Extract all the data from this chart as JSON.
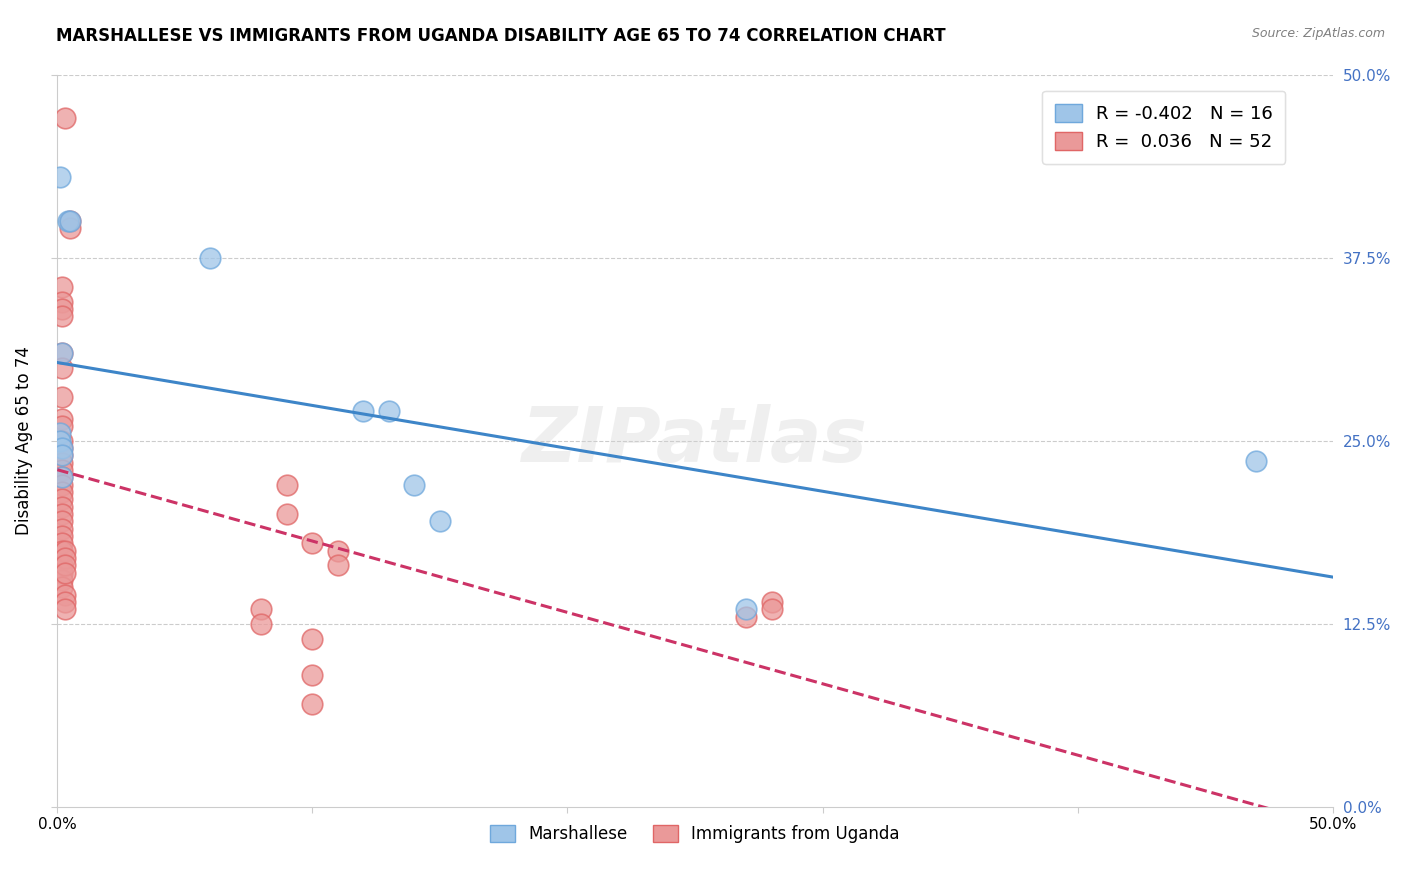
{
  "title": "MARSHALLESE VS IMMIGRANTS FROM UGANDA DISABILITY AGE 65 TO 74 CORRELATION CHART",
  "source": "Source: ZipAtlas.com",
  "ylabel": "Disability Age 65 to 74",
  "xlim": [
    0.0,
    0.5
  ],
  "ylim": [
    0.0,
    0.5
  ],
  "blue_color": "#9fc5e8",
  "pink_color": "#ea9999",
  "blue_edge_color": "#6fa8dc",
  "pink_edge_color": "#e06666",
  "blue_line_color": "#3d85c8",
  "pink_line_color": "#cc3366",
  "legend_blue_r": "-0.402",
  "legend_blue_n": "16",
  "legend_pink_r": "0.036",
  "legend_pink_n": "52",
  "watermark": "ZIPatlas",
  "marshallese_x": [
    0.001,
    0.004,
    0.005,
    0.06,
    0.12,
    0.13,
    0.14,
    0.15,
    0.001,
    0.001,
    0.002,
    0.002,
    0.002,
    0.27,
    0.47,
    0.002
  ],
  "marshallese_y": [
    0.43,
    0.4,
    0.4,
    0.375,
    0.27,
    0.27,
    0.22,
    0.195,
    0.255,
    0.25,
    0.245,
    0.24,
    0.225,
    0.135,
    0.236,
    0.31
  ],
  "uganda_x": [
    0.003,
    0.005,
    0.005,
    0.002,
    0.002,
    0.002,
    0.002,
    0.002,
    0.002,
    0.002,
    0.002,
    0.002,
    0.002,
    0.002,
    0.002,
    0.002,
    0.002,
    0.002,
    0.002,
    0.002,
    0.002,
    0.002,
    0.002,
    0.002,
    0.002,
    0.002,
    0.002,
    0.002,
    0.002,
    0.002,
    0.002,
    0.002,
    0.09,
    0.09,
    0.1,
    0.11,
    0.11,
    0.08,
    0.08,
    0.1,
    0.1,
    0.1,
    0.28,
    0.28,
    0.27,
    0.003,
    0.003,
    0.003,
    0.003,
    0.003,
    0.003,
    0.003
  ],
  "uganda_y": [
    0.47,
    0.4,
    0.395,
    0.355,
    0.345,
    0.34,
    0.335,
    0.31,
    0.3,
    0.28,
    0.265,
    0.26,
    0.25,
    0.245,
    0.24,
    0.235,
    0.23,
    0.225,
    0.22,
    0.215,
    0.21,
    0.205,
    0.2,
    0.195,
    0.19,
    0.185,
    0.18,
    0.175,
    0.165,
    0.16,
    0.155,
    0.15,
    0.22,
    0.2,
    0.18,
    0.175,
    0.165,
    0.135,
    0.125,
    0.115,
    0.09,
    0.07,
    0.14,
    0.135,
    0.13,
    0.175,
    0.17,
    0.165,
    0.16,
    0.145,
    0.14,
    0.135
  ]
}
